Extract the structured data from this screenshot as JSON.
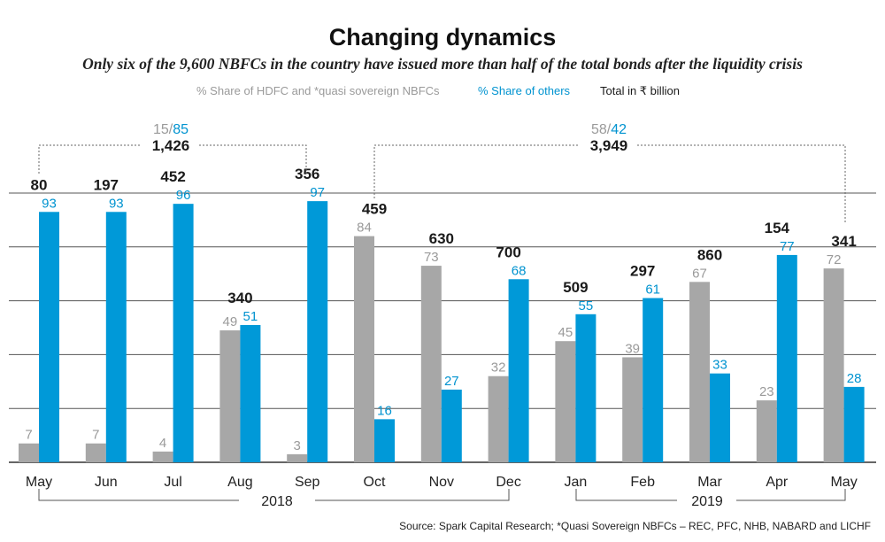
{
  "title": "Changing dynamics",
  "subtitle": "Only six of the 9,600 NBFCs in the country have issued more than half of the total bonds after the liquidity crisis",
  "legend": {
    "gray_label": "% Share of HDFC and *quasi sovereign NBFCs",
    "blue_label": "% Share of others",
    "total_label": "Total in ₹ billion"
  },
  "colors": {
    "gray": "#a7a7a7",
    "blue": "#0099d8",
    "text_gray": "#9a9a9a",
    "text_blue": "#0093d0"
  },
  "annotations": [
    {
      "gray": "15",
      "slash": "/",
      "blue": "85",
      "total": "1,426"
    },
    {
      "gray": "58",
      "slash": "/",
      "blue": "42",
      "total": "3,949"
    }
  ],
  "years": [
    "2018",
    "2019"
  ],
  "source": "Source: Spark Capital Research; *Quasi Sovereign NBFCs – REC, PFC, NHB, NABARD and LICHF",
  "chart_data": {
    "type": "bar",
    "categories": [
      "May",
      "Jun",
      "Jul",
      "Aug",
      "Sep",
      "Oct",
      "Nov",
      "Dec",
      "Jan",
      "Feb",
      "Mar",
      "Apr",
      "May"
    ],
    "series": [
      {
        "name": "% Share of HDFC and *quasi sovereign NBFCs",
        "values": [
          7,
          7,
          4,
          49,
          3,
          84,
          73,
          32,
          45,
          39,
          67,
          23,
          72
        ]
      },
      {
        "name": "% Share of others",
        "values": [
          93,
          93,
          96,
          51,
          97,
          16,
          27,
          68,
          55,
          61,
          33,
          77,
          28
        ]
      }
    ],
    "totals": {
      "name": "Total in ₹ billion",
      "values": [
        "80",
        "197",
        "452",
        "340",
        "356",
        "459",
        "630",
        "700",
        "509",
        "297",
        "860",
        "154",
        "341"
      ]
    },
    "ylim": [
      0,
      100
    ],
    "grid": true
  }
}
